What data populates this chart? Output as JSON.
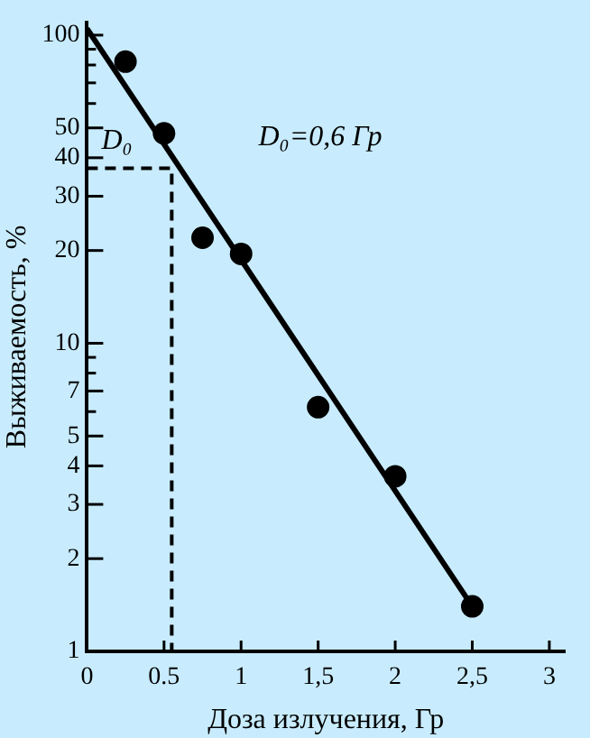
{
  "chart_data": {
    "type": "scatter",
    "xlabel": "Доза излучения, Гр",
    "ylabel": "Выживаемость, %",
    "log": "y",
    "grid": false,
    "legend": false,
    "marker": "circle",
    "xlim": [
      0,
      3.1
    ],
    "xticks": [
      0,
      {
        "value": 0.5,
        "label": "0.5"
      },
      1,
      {
        "value": 1.5,
        "label": "1,5"
      },
      2,
      {
        "value": 2.5,
        "label": "2,5"
      },
      3
    ],
    "ylim": [
      1,
      110
    ],
    "yticks": [
      1,
      2,
      3,
      4,
      5,
      {
        "value": 6,
        "label": null
      },
      7,
      {
        "value": 8,
        "label": null
      },
      {
        "value": 9,
        "label": null
      },
      10,
      20,
      30,
      40,
      50,
      {
        "value": 60,
        "label": null
      },
      {
        "value": 70,
        "label": null
      },
      {
        "value": 80,
        "label": null
      },
      {
        "value": 90,
        "label": null
      },
      100
    ],
    "series": [
      {
        "color": "#000000",
        "x": [
          0.25,
          0.5,
          0.75,
          1,
          1.5,
          2,
          2.5
        ],
        "values": [
          82,
          48,
          22,
          19.5,
          6.2,
          3.7,
          1.4
        ]
      },
      {
        "type": "line",
        "color": "#000000",
        "marker": "none",
        "x": [
          0,
          2.5
        ],
        "values": [
          105,
          1.4
        ]
      },
      {
        "type": "line",
        "color": "#000000",
        "marker": "none",
        "line_style": "dashed",
        "x": [
          0,
          0.55,
          0.55
        ],
        "values": [
          37,
          37,
          1
        ]
      }
    ],
    "annotations": [
      "D₀",
      "D₀=0,6 Гр"
    ]
  }
}
